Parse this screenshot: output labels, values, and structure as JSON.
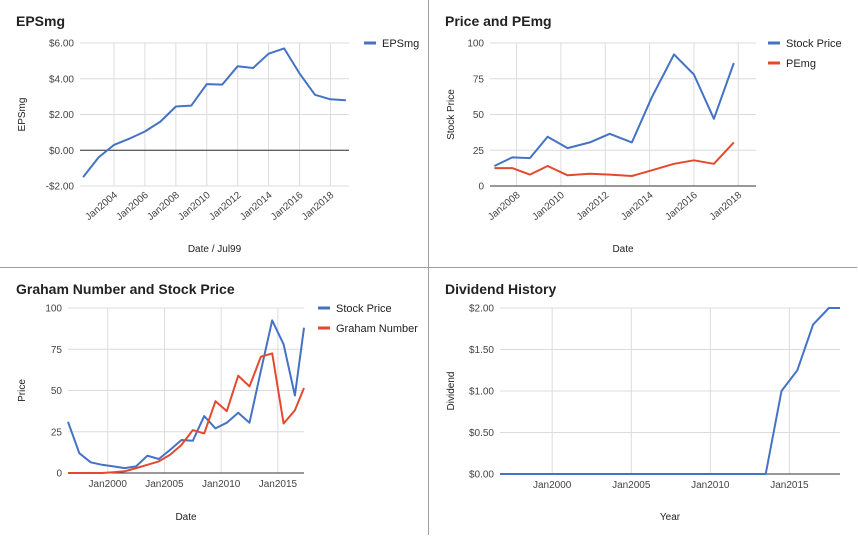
{
  "chart_data": [
    {
      "type": "line",
      "title": "EPSmg",
      "xlabel": "Date / Jul99",
      "ylabel": "EPSmg",
      "x_axis": "date",
      "xlim": [
        2001.8,
        2019.2
      ],
      "ylim": [
        -2,
        6
      ],
      "yticks": [
        -2,
        0,
        2,
        4,
        6
      ],
      "ytick_labels": [
        "-$2.00",
        "$0.00",
        "$2.00",
        "$4.00",
        "$6.00"
      ],
      "xticks": [
        2004,
        2006,
        2008,
        2010,
        2012,
        2014,
        2016,
        2018
      ],
      "xtick_labels": [
        "Jan2004",
        "Jan2006",
        "Jan2008",
        "Jan2010",
        "Jan2012",
        "Jan2014",
        "Jan2016",
        "Jan2018"
      ],
      "xtick_rotated": true,
      "zero_line": true,
      "legend": "right",
      "series": [
        {
          "name": "EPSmg",
          "color": "#4472c4",
          "x": [
            2002,
            2003,
            2004,
            2005,
            2006,
            2007,
            2008,
            2009,
            2010,
            2011,
            2012,
            2013,
            2014,
            2015,
            2016,
            2017,
            2018,
            2019
          ],
          "y": [
            -1.5,
            -0.4,
            0.3,
            0.65,
            1.05,
            1.6,
            2.45,
            2.5,
            3.7,
            3.67,
            4.7,
            4.6,
            5.4,
            5.7,
            4.3,
            3.1,
            2.85,
            2.8
          ]
        }
      ]
    },
    {
      "type": "line",
      "title": "Price and PEmg",
      "xlabel": "Date",
      "ylabel": "Stock Price",
      "x_axis": "date",
      "xlim": [
        2006.8,
        2018.8
      ],
      "ylim": [
        0,
        100
      ],
      "yticks": [
        0,
        25,
        50,
        75,
        100
      ],
      "ytick_labels": [
        "0",
        "25",
        "50",
        "75",
        "100"
      ],
      "xticks": [
        2008,
        2010,
        2012,
        2014,
        2016,
        2018
      ],
      "xtick_labels": [
        "Jan2008",
        "Jan2010",
        "Jan2012",
        "Jan2014",
        "Jan2016",
        "Jan2018"
      ],
      "xtick_rotated": true,
      "legend": "right",
      "series": [
        {
          "name": "Stock Price",
          "color": "#4472c4",
          "x": [
            2007,
            2007.8,
            2008.6,
            2009.4,
            2010.3,
            2011.3,
            2012.2,
            2013.2,
            2014.1,
            2015.1,
            2016,
            2016.9,
            2017.8
          ],
          "y": [
            14,
            20,
            19.5,
            34.5,
            26.5,
            30.5,
            36.5,
            30.5,
            62,
            92,
            78,
            47,
            86
          ]
        },
        {
          "name": "PEmg",
          "color": "#e34a2d",
          "x": [
            2007,
            2007.8,
            2008.6,
            2009.4,
            2010.3,
            2011.3,
            2012.2,
            2013.2,
            2014.1,
            2015.1,
            2016,
            2016.9,
            2017.8
          ],
          "y": [
            12.5,
            12.5,
            8,
            14,
            7.5,
            8.5,
            8,
            7,
            11,
            15.5,
            18,
            15.5,
            30.5
          ]
        }
      ]
    },
    {
      "type": "line",
      "title": "Graham Number and Stock Price",
      "xlabel": "Date",
      "ylabel": "Price",
      "x_axis": "date",
      "xlim": [
        1996.5,
        2017.3
      ],
      "ylim": [
        0,
        100
      ],
      "yticks": [
        0,
        25,
        50,
        75,
        100
      ],
      "ytick_labels": [
        "0",
        "25",
        "50",
        "75",
        "100"
      ],
      "xticks": [
        2000,
        2005,
        2010,
        2015
      ],
      "xtick_labels": [
        "Jan2000",
        "Jan2005",
        "Jan2010",
        "Jan2015"
      ],
      "xtick_rotated": false,
      "legend": "right",
      "series": [
        {
          "name": "Stock Price",
          "color": "#4472c4",
          "x": [
            1996.5,
            1997.5,
            1998.5,
            1999.5,
            2000.5,
            2001.5,
            2002.5,
            2003.5,
            2004.5,
            2005.5,
            2006.5,
            2007.5,
            2008.5,
            2009.5,
            2010.5,
            2011.5,
            2012.5,
            2013.5,
            2014.5,
            2015.5,
            2016.5,
            2017.3
          ],
          "y": [
            31,
            12,
            6.5,
            5,
            4,
            3,
            4,
            10.5,
            8.5,
            14,
            20,
            19.5,
            34.5,
            27,
            30.5,
            36.5,
            30.5,
            62,
            92.5,
            78,
            47,
            88
          ]
        },
        {
          "name": "Graham Number",
          "color": "#e34a2d",
          "x": [
            1996.5,
            1997.5,
            1998.5,
            1999.5,
            2000.5,
            2001.5,
            2002.5,
            2003.5,
            2004.5,
            2005.5,
            2006.5,
            2007.5,
            2008.5,
            2009.5,
            2010.5,
            2011.5,
            2012.5,
            2013.5,
            2014.5,
            2015.5,
            2016.5,
            2017.3
          ],
          "y": [
            0,
            0,
            0,
            0,
            0.5,
            1,
            3,
            5,
            7,
            11,
            17,
            26,
            24,
            43.5,
            37.5,
            59,
            52.5,
            70.5,
            72.5,
            30,
            38,
            51.5
          ]
        }
      ]
    },
    {
      "type": "line",
      "title": "Dividend History",
      "xlabel": "Year",
      "ylabel": "Dividend",
      "x_axis": "date",
      "xlim": [
        1996.7,
        2018.2
      ],
      "ylim": [
        0,
        2
      ],
      "yticks": [
        0,
        0.5,
        1,
        1.5,
        2
      ],
      "ytick_labels": [
        "$0.00",
        "$0.50",
        "$1.00",
        "$1.50",
        "$2.00"
      ],
      "xticks": [
        2000,
        2005,
        2010,
        2015
      ],
      "xtick_labels": [
        "Jan2000",
        "Jan2005",
        "Jan2010",
        "Jan2015"
      ],
      "xtick_rotated": false,
      "legend": "none",
      "series": [
        {
          "name": "",
          "color": "#4472c4",
          "x": [
            1996.7,
            2013.5,
            2014.5,
            2015.5,
            2016.5,
            2017.5,
            2018.2
          ],
          "y": [
            0,
            0,
            1.0,
            1.25,
            1.8,
            2.0,
            2.0
          ]
        }
      ]
    }
  ]
}
